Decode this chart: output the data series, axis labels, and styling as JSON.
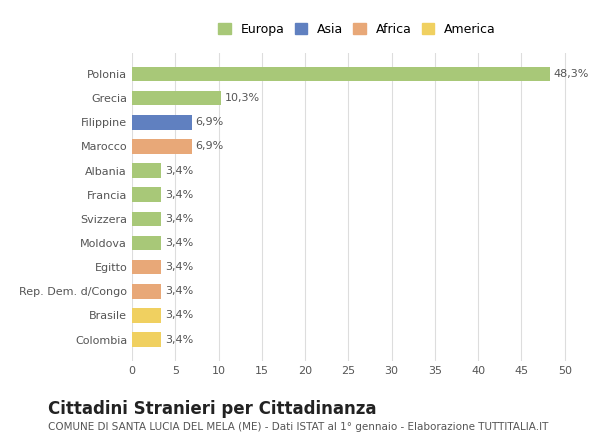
{
  "categories": [
    "Colombia",
    "Brasile",
    "Rep. Dem. d/Congo",
    "Egitto",
    "Moldova",
    "Svizzera",
    "Francia",
    "Albania",
    "Marocco",
    "Filippine",
    "Grecia",
    "Polonia"
  ],
  "values": [
    3.4,
    3.4,
    3.4,
    3.4,
    3.4,
    3.4,
    3.4,
    3.4,
    6.9,
    6.9,
    10.3,
    48.3
  ],
  "colors": [
    "#f0d060",
    "#f0d060",
    "#e8a878",
    "#e8a878",
    "#a8c878",
    "#a8c878",
    "#a8c878",
    "#a8c878",
    "#e8a878",
    "#6080c0",
    "#a8c878",
    "#a8c878"
  ],
  "labels": [
    "3,4%",
    "3,4%",
    "3,4%",
    "3,4%",
    "3,4%",
    "3,4%",
    "3,4%",
    "3,4%",
    "6,9%",
    "6,9%",
    "10,3%",
    "48,3%"
  ],
  "legend": [
    {
      "label": "Europa",
      "color": "#a8c878"
    },
    {
      "label": "Asia",
      "color": "#6080c0"
    },
    {
      "label": "Africa",
      "color": "#e8a878"
    },
    {
      "label": "America",
      "color": "#f0d060"
    }
  ],
  "title": "Cittadini Stranieri per Cittadinanza",
  "subtitle": "COMUNE DI SANTA LUCIA DEL MELA (ME) - Dati ISTAT al 1° gennaio - Elaborazione TUTTITALIA.IT",
  "xlim": [
    0,
    52
  ],
  "xticks": [
    0,
    5,
    10,
    15,
    20,
    25,
    30,
    35,
    40,
    45,
    50
  ],
  "background_color": "#ffffff",
  "grid_color": "#dddddd",
  "bar_height": 0.6,
  "label_fontsize": 8,
  "tick_fontsize": 8,
  "title_fontsize": 12,
  "subtitle_fontsize": 7.5
}
